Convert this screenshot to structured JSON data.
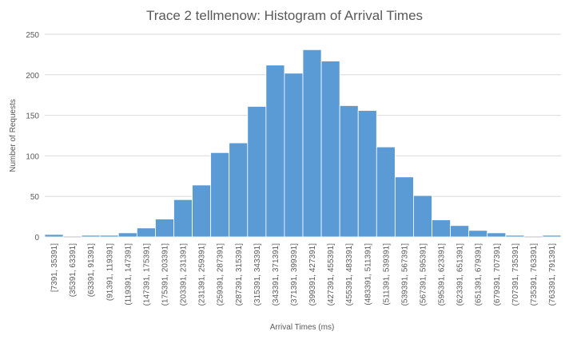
{
  "chart_data": {
    "type": "bar",
    "title": "Trace 2 tellmenow: Histogram of Arrival Times",
    "xlabel": "Arrival Times (ms)",
    "ylabel": "Number of Requests",
    "ylim": [
      0,
      250
    ],
    "yticks": [
      0,
      50,
      100,
      150,
      200,
      250
    ],
    "grid": true,
    "legend": "none",
    "bar_color": "#5b9bd5",
    "categories": [
      "[7391, 35391]",
      "(35391, 63391]",
      "(63391, 91391]",
      "(91391, 119391]",
      "(119391, 147391]",
      "(147391, 175391]",
      "(175391, 203391]",
      "(203391, 231391]",
      "(231391, 259391]",
      "(259391, 287391]",
      "(287391, 315391]",
      "(315391, 343391]",
      "(343391, 371391]",
      "(371391, 399391]",
      "(399391, 427391]",
      "(427391, 455391]",
      "(455391, 483391]",
      "(483391, 511391]",
      "(511391, 539391]",
      "(539391, 567391]",
      "(567391, 595391]",
      "(595391, 623391]",
      "(623391, 651391]",
      "(651391, 679391]",
      "(679391, 707391]",
      "(707391, 735391]",
      "(735391, 763391]",
      "(763391, 791391]"
    ],
    "values": [
      3,
      0,
      2,
      2,
      5,
      11,
      22,
      46,
      64,
      104,
      116,
      161,
      212,
      202,
      231,
      217,
      162,
      156,
      111,
      74,
      51,
      21,
      14,
      8,
      5,
      2,
      0,
      2
    ]
  }
}
